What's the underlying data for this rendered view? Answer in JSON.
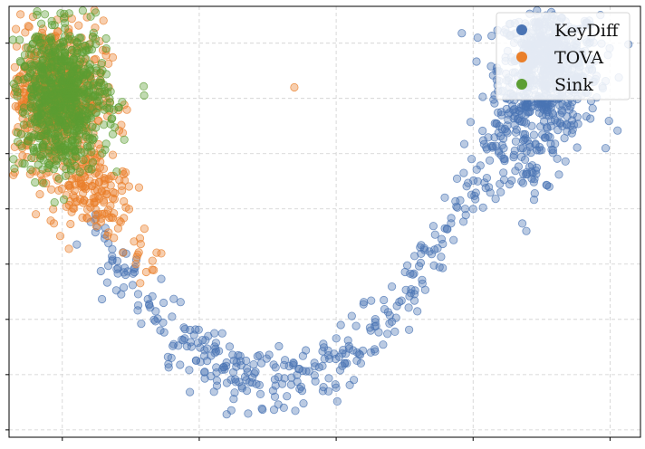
{
  "chart_data": {
    "type": "scatter",
    "title": "",
    "xlabel": "",
    "ylabel": "",
    "xlim": [
      -4.0,
      4.3
    ],
    "ylim": [
      -2.3,
      3.55
    ],
    "grid": true,
    "legend_position": "top-right",
    "tick_labels_visible": false,
    "series": [
      {
        "name": "KeyDiff",
        "color": "#4a74b4",
        "generator": "U-shaped arc of points from upper-left cluster, dipping to a minimum near x = 0, rising to a dense cluster at upper right",
        "clusters": [
          {
            "center": [
              3.1,
              2.7
            ],
            "spread": [
              0.33,
              0.42
            ],
            "count": 650
          },
          {
            "center": [
              2.8,
              1.6
            ],
            "spread": [
              0.28,
              0.35
            ],
            "count": 90
          }
        ],
        "arc": {
          "x_range": [
            -2.9,
            3.2
          ],
          "vertex": [
            -0.6,
            -1.55
          ],
          "count": 420,
          "noise": 0.22
        },
        "outliers": [
          [
            1.6,
            0.45
          ],
          [
            2.8,
            0.5
          ],
          [
            -2.0,
            -0.15
          ],
          [
            -0.9,
            -2.3
          ]
        ]
      },
      {
        "name": "TOVA",
        "color": "#ea7f2a",
        "clusters": [
          {
            "center": [
              -3.4,
              2.35
            ],
            "spread": [
              0.32,
              0.5
            ],
            "count": 650
          },
          {
            "center": [
              -2.95,
              1.1
            ],
            "spread": [
              0.25,
              0.28
            ],
            "count": 140
          }
        ],
        "tail": {
          "from": [
            -2.7,
            0.9
          ],
          "to": [
            -2.1,
            -0.15
          ],
          "count": 30
        },
        "outliers": [
          [
            -0.25,
            2.45
          ]
        ]
      },
      {
        "name": "Sink",
        "color": "#5c9e33",
        "clusters": [
          {
            "center": [
              -3.3,
              2.3
            ],
            "spread": [
              0.3,
              0.48
            ],
            "count": 750
          }
        ]
      }
    ]
  }
}
